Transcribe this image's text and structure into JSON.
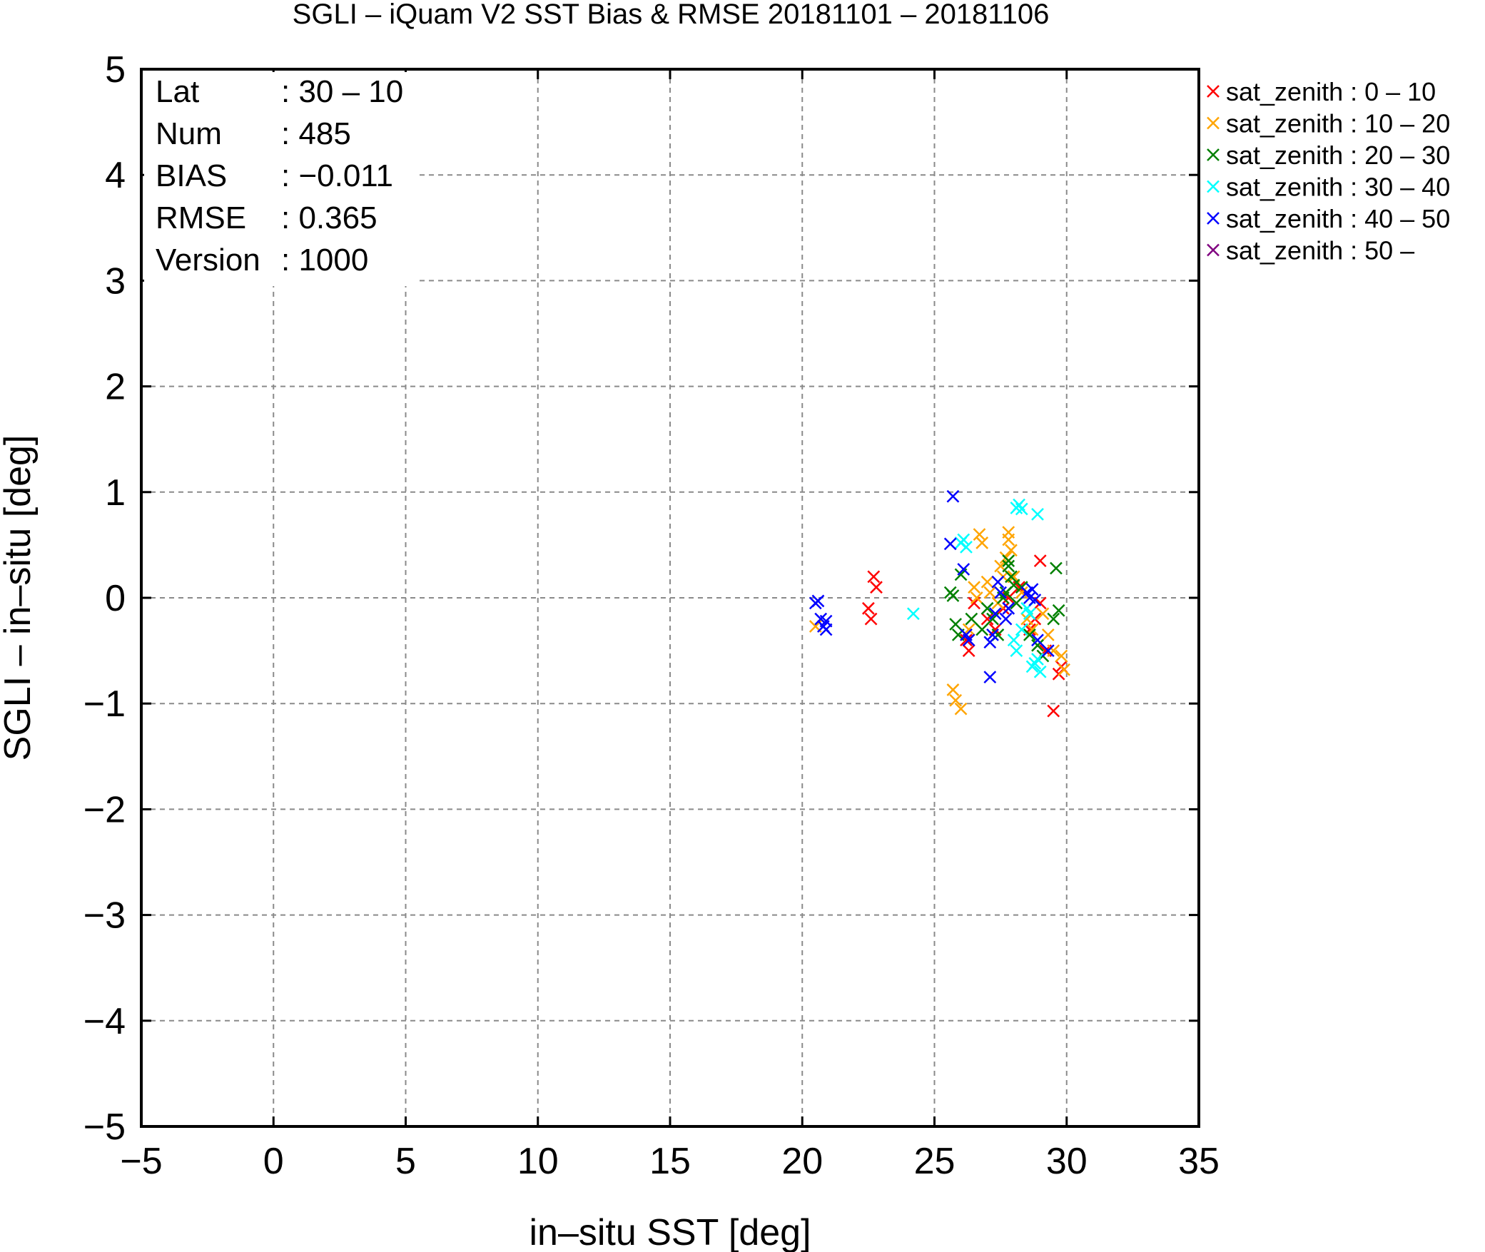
{
  "chart_data": {
    "type": "scatter",
    "title": "SGLI – iQuam V2 SST Bias & RMSE 20181101 – 20181106",
    "xlabel": "in–situ SST [deg]",
    "ylabel": "SGLI – in–situ [deg]",
    "xlim": [
      -5,
      35
    ],
    "ylim": [
      -5,
      5
    ],
    "x_ticks": [
      -5,
      0,
      5,
      10,
      15,
      20,
      25,
      30,
      35
    ],
    "y_ticks": [
      5,
      4,
      3,
      2,
      1,
      0,
      -1,
      -2,
      -3,
      -4,
      -5
    ],
    "x_tick_labels": [
      "−5",
      "0",
      "5",
      "10",
      "15",
      "20",
      "25",
      "30",
      "35"
    ],
    "y_tick_labels": [
      "5",
      "4",
      "3",
      "2",
      "1",
      "0",
      "−1",
      "−2",
      "−3",
      "−4",
      "−5"
    ],
    "grid": true,
    "legend_position": "outside-top-right",
    "stats": [
      {
        "label": "Lat",
        "value": ": 30 – 10"
      },
      {
        "label": "Num",
        "value": ": 485"
      },
      {
        "label": "BIAS",
        "value": ": −0.011"
      },
      {
        "label": "RMSE",
        "value": ": 0.365"
      },
      {
        "label": "Version",
        "value": ": 1000"
      }
    ],
    "series": [
      {
        "name": "sat_zenith :  0 – 10",
        "color": "#ff0000",
        "points": [
          [
            22.5,
            -0.1
          ],
          [
            22.6,
            -0.2
          ],
          [
            22.7,
            0.2
          ],
          [
            22.8,
            0.1
          ],
          [
            26.2,
            -0.4
          ],
          [
            26.3,
            -0.5
          ],
          [
            26.5,
            -0.05
          ],
          [
            27.0,
            -0.2
          ],
          [
            27.3,
            -0.3
          ],
          [
            27.6,
            -0.1
          ],
          [
            27.8,
            0.0
          ],
          [
            28.2,
            0.1
          ],
          [
            28.6,
            -0.3
          ],
          [
            28.8,
            -0.2
          ],
          [
            29.0,
            0.35
          ],
          [
            29.0,
            -0.05
          ],
          [
            29.2,
            -0.5
          ],
          [
            29.5,
            -1.07
          ],
          [
            29.7,
            -0.72
          ],
          [
            29.8,
            -0.65
          ]
        ]
      },
      {
        "name": "sat_zenith : 10 – 20",
        "color": "#ffa500",
        "points": [
          [
            20.5,
            -0.27
          ],
          [
            25.7,
            -0.87
          ],
          [
            25.8,
            -0.97
          ],
          [
            26.0,
            -1.05
          ],
          [
            26.3,
            -0.3
          ],
          [
            26.5,
            0.1
          ],
          [
            26.6,
            0.0
          ],
          [
            26.7,
            0.6
          ],
          [
            26.8,
            0.52
          ],
          [
            27.0,
            0.15
          ],
          [
            27.1,
            0.05
          ],
          [
            27.4,
            -0.05
          ],
          [
            27.5,
            0.3
          ],
          [
            27.6,
            0.2
          ],
          [
            27.7,
            0.38
          ],
          [
            27.8,
            0.55
          ],
          [
            27.8,
            0.62
          ],
          [
            27.9,
            0.45
          ],
          [
            28.0,
            0.2
          ],
          [
            28.3,
            0.05
          ],
          [
            28.5,
            -0.2
          ],
          [
            28.7,
            -0.3
          ],
          [
            29.1,
            -0.15
          ],
          [
            29.3,
            -0.35
          ],
          [
            29.5,
            -0.5
          ],
          [
            29.8,
            -0.55
          ],
          [
            29.9,
            -0.68
          ]
        ]
      },
      {
        "name": "sat_zenith : 20 – 30",
        "color": "#008000",
        "points": [
          [
            25.6,
            0.05
          ],
          [
            25.7,
            0.02
          ],
          [
            25.8,
            -0.25
          ],
          [
            25.9,
            -0.35
          ],
          [
            26.0,
            0.22
          ],
          [
            26.4,
            -0.2
          ],
          [
            26.8,
            -0.3
          ],
          [
            27.0,
            -0.1
          ],
          [
            27.2,
            -0.2
          ],
          [
            27.4,
            -0.35
          ],
          [
            27.6,
            0.0
          ],
          [
            27.7,
            0.05
          ],
          [
            27.8,
            0.3
          ],
          [
            27.8,
            0.35
          ],
          [
            27.9,
            0.2
          ],
          [
            28.0,
            0.12
          ],
          [
            28.1,
            -0.05
          ],
          [
            28.3,
            0.1
          ],
          [
            28.6,
            -0.35
          ],
          [
            28.9,
            -0.45
          ],
          [
            29.1,
            -0.55
          ],
          [
            29.5,
            -0.2
          ],
          [
            29.6,
            0.28
          ],
          [
            29.7,
            -0.12
          ]
        ]
      },
      {
        "name": "sat_zenith : 30 – 40",
        "color": "#00ffff",
        "points": [
          [
            24.2,
            -0.15
          ],
          [
            26.0,
            0.52
          ],
          [
            26.1,
            0.55
          ],
          [
            26.2,
            0.48
          ],
          [
            28.1,
            0.85
          ],
          [
            28.2,
            0.88
          ],
          [
            28.3,
            0.84
          ],
          [
            28.9,
            0.79
          ],
          [
            28.0,
            -0.4
          ],
          [
            28.1,
            -0.5
          ],
          [
            28.3,
            -0.3
          ],
          [
            28.5,
            -0.1
          ],
          [
            28.6,
            -0.15
          ],
          [
            28.7,
            -0.65
          ],
          [
            28.9,
            -0.58
          ],
          [
            29.0,
            -0.7
          ],
          [
            28.8,
            -0.62
          ]
        ]
      },
      {
        "name": "sat_zenith : 40 – 50",
        "color": "#0000ff",
        "points": [
          [
            20.5,
            -0.05
          ],
          [
            20.6,
            -0.03
          ],
          [
            20.7,
            -0.2
          ],
          [
            20.8,
            -0.27
          ],
          [
            20.9,
            -0.3
          ],
          [
            20.9,
            -0.22
          ],
          [
            25.6,
            0.51
          ],
          [
            25.7,
            0.96
          ],
          [
            26.1,
            0.27
          ],
          [
            26.2,
            -0.35
          ],
          [
            26.3,
            -0.4
          ],
          [
            27.1,
            -0.75
          ],
          [
            27.1,
            -0.42
          ],
          [
            27.2,
            -0.35
          ],
          [
            27.3,
            -0.15
          ],
          [
            27.4,
            0.15
          ],
          [
            27.5,
            0.05
          ],
          [
            27.7,
            -0.2
          ],
          [
            27.8,
            -0.1
          ],
          [
            28.5,
            0.05
          ],
          [
            28.6,
            0.0
          ],
          [
            28.7,
            0.08
          ],
          [
            28.8,
            -0.02
          ],
          [
            28.9,
            -0.4
          ],
          [
            29.3,
            -0.5
          ]
        ]
      },
      {
        "name": "sat_zenith : 50 –",
        "color": "#800080",
        "points": []
      }
    ]
  }
}
